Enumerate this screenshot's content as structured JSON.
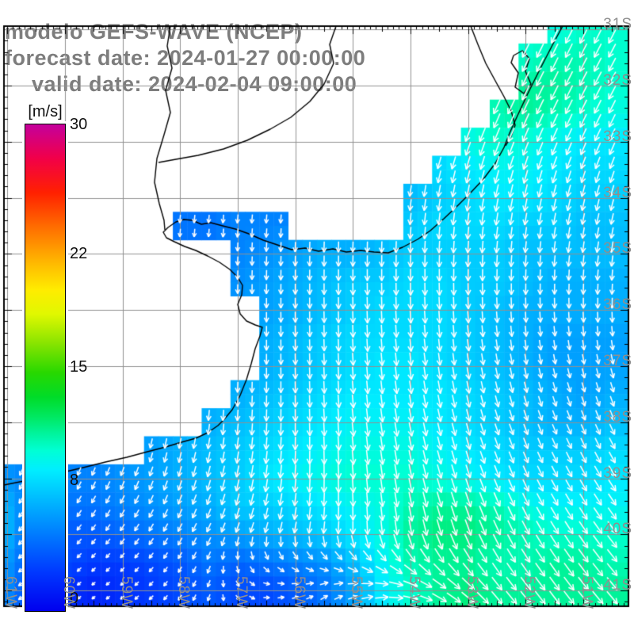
{
  "title": {
    "line1": "modelo GEFS-WAVE (NCEP)",
    "line2": "forecast date: 2024-01-27 00:00:00",
    "line3": "valid date: 2024-02-04 09:00:00"
  },
  "colorbar": {
    "unit_label": "[m/s]",
    "min": 0,
    "max": 30,
    "ticks": [
      {
        "value": 30,
        "label": "30"
      },
      {
        "value": 22,
        "label": "22"
      },
      {
        "value": 15,
        "label": "15"
      },
      {
        "value": 8,
        "label": "8"
      },
      {
        "value": 0,
        "label": "0"
      }
    ],
    "gradient_stops": [
      [
        0.0,
        "#0000ee"
      ],
      [
        0.08,
        "#0038ff"
      ],
      [
        0.14,
        "#006cff"
      ],
      [
        0.2,
        "#00a0ff"
      ],
      [
        0.25,
        "#00ccff"
      ],
      [
        0.29,
        "#00eeff"
      ],
      [
        0.33,
        "#00ffd4"
      ],
      [
        0.365,
        "#00f49c"
      ],
      [
        0.4,
        "#00e860"
      ],
      [
        0.44,
        "#00dc28"
      ],
      [
        0.49,
        "#28d800"
      ],
      [
        0.55,
        "#88e400"
      ],
      [
        0.61,
        "#e0f800"
      ],
      [
        0.66,
        "#ffec00"
      ],
      [
        0.72,
        "#ffb400"
      ],
      [
        0.79,
        "#ff6c00"
      ],
      [
        0.86,
        "#ff2000"
      ],
      [
        0.93,
        "#f20048"
      ],
      [
        1.0,
        "#c4009c"
      ]
    ]
  },
  "axes": {
    "lon_labels": [
      {
        "lon": -61,
        "text": "61W"
      },
      {
        "lon": -60,
        "text": "60W"
      },
      {
        "lon": -59,
        "text": "59W"
      },
      {
        "lon": -58,
        "text": "58W"
      },
      {
        "lon": -57,
        "text": "57W"
      },
      {
        "lon": -56,
        "text": "56W"
      },
      {
        "lon": -55,
        "text": "55W"
      },
      {
        "lon": -54,
        "text": "54W"
      },
      {
        "lon": -53,
        "text": "53W"
      },
      {
        "lon": -52,
        "text": "52W"
      },
      {
        "lon": -51,
        "text": "51W"
      }
    ],
    "lat_labels": [
      {
        "lat": -31,
        "text": "31S"
      },
      {
        "lat": -32,
        "text": "32S"
      },
      {
        "lat": -33,
        "text": "33S"
      },
      {
        "lat": -34,
        "text": "34S"
      },
      {
        "lat": -35,
        "text": "35S"
      },
      {
        "lat": -36,
        "text": "36S"
      },
      {
        "lat": -37,
        "text": "37S"
      },
      {
        "lat": -38,
        "text": "38S"
      },
      {
        "lat": -39,
        "text": "39S"
      },
      {
        "lat": -40,
        "text": "40S"
      },
      {
        "lat": -41,
        "text": "41S"
      }
    ]
  },
  "style": {
    "land_color": "#ffffff",
    "grid_color": "#919191",
    "coastline_color": "#000000",
    "arrow_color": "#ffffff",
    "frame_color": "#000000",
    "title_color": "#7d7d7d",
    "axis_label_color": "#8f8f8f",
    "colorbar_label_color": "#111111"
  },
  "chart_data": {
    "type": "heatmap",
    "title": "modelo GEFS-WAVE (NCEP)",
    "field": "wind speed with direction arrows",
    "units": "m/s",
    "colorbar_range": [
      0,
      30
    ],
    "lon_axis": {
      "min": -61.06,
      "max": -50.22,
      "tick_step_deg": 1
    },
    "lat_axis": {
      "min": -41.29,
      "max": -30.94,
      "tick_step_deg": 1
    },
    "speed_grid": {
      "lon_start": -61.5,
      "dlon": 0.5,
      "lat_start": -31,
      "dlat": -0.5,
      "values": [
        [
          null,
          null,
          null,
          null,
          null,
          null,
          null,
          null,
          null,
          null,
          null,
          null,
          null,
          null,
          null,
          null,
          null,
          null,
          null,
          null,
          9.5,
          10,
          10
        ],
        [
          null,
          null,
          null,
          null,
          null,
          null,
          null,
          null,
          null,
          null,
          null,
          null,
          null,
          null,
          null,
          null,
          null,
          null,
          null,
          10,
          10.5,
          10.5,
          10
        ],
        [
          null,
          null,
          null,
          null,
          null,
          null,
          null,
          null,
          null,
          null,
          null,
          null,
          null,
          null,
          null,
          null,
          null,
          null,
          null,
          11,
          11,
          10.5,
          10
        ],
        [
          null,
          null,
          null,
          null,
          null,
          null,
          null,
          null,
          null,
          null,
          null,
          null,
          null,
          null,
          null,
          null,
          null,
          null,
          10.5,
          11,
          10.5,
          10,
          9.5
        ],
        [
          null,
          null,
          null,
          null,
          null,
          null,
          null,
          null,
          null,
          null,
          null,
          null,
          null,
          null,
          null,
          null,
          null,
          9.5,
          10,
          9.5,
          9,
          8.5,
          8.5
        ],
        [
          null,
          null,
          null,
          null,
          null,
          null,
          null,
          null,
          null,
          null,
          null,
          null,
          null,
          null,
          null,
          null,
          8,
          8.5,
          9,
          9,
          8.5,
          8,
          8
        ],
        [
          null,
          null,
          null,
          null,
          null,
          null,
          null,
          null,
          null,
          null,
          null,
          null,
          null,
          null,
          null,
          7,
          7.5,
          8,
          8.5,
          8.5,
          8,
          7.5,
          7.5
        ],
        [
          null,
          null,
          null,
          null,
          null,
          null,
          null,
          4.5,
          4.5,
          5,
          5,
          null,
          null,
          null,
          null,
          7.5,
          8,
          8,
          8,
          7.5,
          7.5,
          7,
          7
        ],
        [
          null,
          null,
          null,
          null,
          null,
          null,
          null,
          null,
          null,
          5,
          5.5,
          6,
          6.5,
          6.5,
          7,
          7.5,
          7.5,
          7.5,
          7.5,
          7,
          7,
          7,
          7
        ],
        [
          null,
          null,
          null,
          null,
          null,
          null,
          null,
          null,
          null,
          5.5,
          6,
          6.5,
          7,
          7.5,
          7.5,
          8,
          8,
          7.5,
          7.5,
          7,
          6.5,
          6.5,
          6.5
        ],
        [
          null,
          null,
          null,
          null,
          null,
          null,
          null,
          null,
          null,
          null,
          6,
          6.5,
          7,
          7.5,
          8,
          8,
          8,
          7.5,
          7,
          6.5,
          6.5,
          6.5,
          6.5
        ],
        [
          null,
          null,
          null,
          null,
          null,
          null,
          null,
          null,
          null,
          null,
          6.5,
          7,
          7.5,
          8,
          8,
          8,
          8,
          7.5,
          7,
          6.5,
          6,
          6,
          6
        ],
        [
          null,
          null,
          null,
          null,
          null,
          null,
          null,
          null,
          null,
          null,
          6.5,
          7,
          7.5,
          8,
          8.5,
          8.5,
          8,
          7.5,
          7,
          6.5,
          6,
          6,
          6
        ],
        [
          null,
          null,
          null,
          null,
          null,
          null,
          null,
          null,
          null,
          6.5,
          7,
          7.5,
          8,
          8.5,
          8.5,
          8.5,
          8.5,
          8,
          7.5,
          7,
          6.5,
          6,
          6.5
        ],
        [
          null,
          null,
          null,
          null,
          null,
          null,
          null,
          null,
          6.5,
          7,
          7.5,
          8,
          8.5,
          9,
          9,
          9,
          8.5,
          8,
          7.5,
          7,
          6.5,
          6.5,
          7
        ],
        [
          null,
          null,
          null,
          null,
          null,
          null,
          6,
          6.5,
          7,
          7.5,
          8,
          8.5,
          9,
          9.5,
          9.5,
          9.5,
          9,
          8.5,
          8,
          7.5,
          7.5,
          7.5,
          8
        ],
        [
          null,
          5.5,
          5,
          5,
          5,
          5.5,
          6,
          6.5,
          7,
          7.5,
          8.5,
          9,
          9.5,
          10,
          10,
          10,
          9.5,
          9,
          8.5,
          8,
          8,
          8,
          8.5
        ],
        [
          7,
          6.5,
          4.5,
          4.5,
          4.5,
          5,
          5.5,
          6,
          6.5,
          7.5,
          7.5,
          8,
          8.5,
          9,
          9.5,
          10.5,
          11,
          11,
          10.5,
          9.5,
          9,
          9,
          9
        ],
        [
          7,
          6.5,
          4,
          3.5,
          3.5,
          4,
          4.5,
          5,
          5.5,
          6,
          6.5,
          7,
          7.5,
          8.5,
          9.5,
          11,
          11.5,
          11.5,
          11,
          10.5,
          10,
          10,
          10
        ],
        [
          7,
          5.5,
          3.5,
          3,
          2.5,
          2.5,
          3,
          3.5,
          4.5,
          4,
          4.5,
          5,
          5.5,
          7,
          9,
          10.5,
          11,
          11,
          10.5,
          10.5,
          11,
          11,
          10.5
        ],
        [
          6.5,
          5,
          3,
          2,
          1.5,
          2,
          2.5,
          3,
          3.5,
          3,
          3,
          3.5,
          4.5,
          6,
          8.5,
          10,
          11,
          11.5,
          11,
          11,
          11,
          11,
          11
        ]
      ]
    },
    "direction_grid": {
      "lon_start": -61.5,
      "dlon": 1,
      "lat_start": -31,
      "dlat": -1,
      "toward_deg": [
        [
          200,
          200,
          200,
          200,
          200,
          200,
          201,
          202,
          203,
          205,
          206,
          207
        ],
        [
          200,
          200,
          200,
          200,
          200,
          200,
          201,
          203,
          204,
          206,
          207,
          208
        ],
        [
          195,
          195,
          195,
          195,
          195,
          196,
          197,
          198,
          200,
          202,
          204,
          205
        ],
        [
          190,
          190,
          190,
          188,
          187,
          186,
          186,
          187,
          189,
          191,
          193,
          195
        ],
        [
          185,
          185,
          185,
          184,
          183,
          182,
          181,
          181,
          182,
          184,
          186,
          188
        ],
        [
          183,
          183,
          183,
          182,
          181,
          180,
          179,
          178,
          177,
          177,
          178,
          180
        ],
        [
          185,
          185,
          184,
          183,
          182,
          180,
          178,
          175,
          172,
          170,
          168,
          167
        ],
        [
          195,
          193,
          191,
          189,
          186,
          182,
          177,
          172,
          167,
          162,
          158,
          156
        ],
        [
          210,
          207,
          204,
          200,
          195,
          188,
          180,
          172,
          164,
          158,
          152,
          148
        ],
        [
          225,
          221,
          217,
          212,
          205,
          196,
          186,
          175,
          164,
          155,
          148,
          143
        ],
        [
          240,
          236,
          232,
          226,
          200,
          90,
          60,
          85,
          120,
          140,
          143,
          140
        ]
      ]
    }
  }
}
